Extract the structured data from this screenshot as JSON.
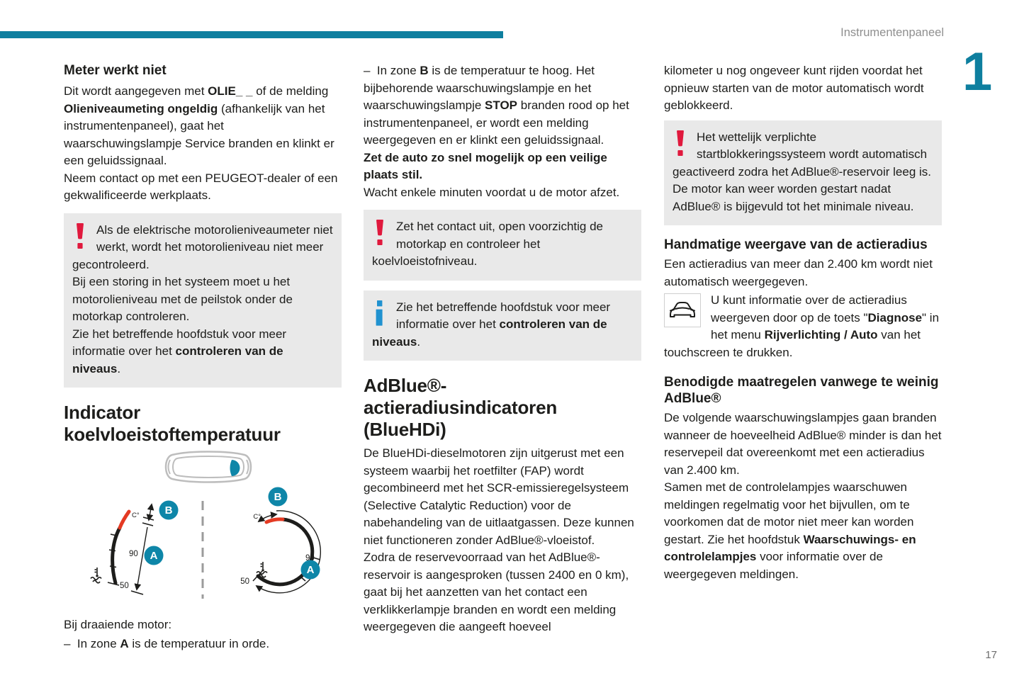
{
  "header": {
    "section_title": "Instrumentenpaneel",
    "chapter_number": "1",
    "page_number": "17"
  },
  "colors": {
    "accent_teal": "#0e7f9f",
    "badge_teal": "#0e86a8",
    "warning_red": "#e0193d",
    "gauge_red": "#e43a23",
    "info_blue": "#2092d0",
    "box_gray": "#e9e9e9",
    "text": "#1d1d1b"
  },
  "col1": {
    "h_meter": "Meter werkt niet",
    "p_meter": [
      {
        "t": "Dit wordt aangegeven met "
      },
      {
        "t": "OLIE_ _",
        "b": true
      },
      {
        "t": " of de melding "
      },
      {
        "t": "Olieniveaumeting ongeldig",
        "b": true
      },
      {
        "t": " (afhankelijk van het instrumentenpaneel), gaat het waarschuwingslampje Service branden en klinkt er een geluidssignaal."
      },
      {
        "br": true
      },
      {
        "t": "Neem contact op met een PEUGEOT-dealer of een gekwalificeerde werkplaats."
      }
    ],
    "warn_oil": [
      {
        "t": "Als de elektrische motorolieniveaumeter niet werkt, wordt het motorolieniveau niet meer gecontroleerd."
      },
      {
        "br": true
      },
      {
        "t": "Bij een storing in het systeem moet u het motorolieniveau met de peilstok onder de motorkap controleren."
      },
      {
        "br": true
      },
      {
        "t": "Zie het betreffende hoofdstuk voor meer informatie over het "
      },
      {
        "t": "controleren van de niveaus",
        "b": true
      },
      {
        "t": "."
      }
    ],
    "h_coolant": "Indicator koelvloeistoftemperatuur",
    "figure": {
      "zone_a": "A",
      "zone_b": "B",
      "temp_90": "90",
      "temp_50": "50",
      "celsius": "C°"
    },
    "p_engine": "Bij draaiende motor:",
    "p_zone_a": [
      {
        "t": "–  In zone "
      },
      {
        "t": "A",
        "b": true
      },
      {
        "t": " is de temperatuur in orde."
      }
    ]
  },
  "col2": {
    "p_zone_b": [
      {
        "t": "–  In zone "
      },
      {
        "t": "B",
        "b": true
      },
      {
        "t": " is de temperatuur te hoog. Het bijbehorende waarschuwingslampje en het waarschuwingslampje "
      },
      {
        "t": "STOP",
        "b": true
      },
      {
        "t": " branden rood op het instrumentenpaneel, er wordt een melding weergegeven en er klinkt een geluidssignaal."
      },
      {
        "br": true
      },
      {
        "t": "Zet de auto zo snel mogelijk op een veilige plaats stil.",
        "b": true
      },
      {
        "br": true
      },
      {
        "t": "Wacht enkele minuten voordat u de motor afzet."
      }
    ],
    "warn_contact": [
      {
        "t": "Zet het contact uit, open voorzichtig de motorkap en controleer het koelvloeistofniveau."
      }
    ],
    "info_levels": [
      {
        "t": "Zie het betreffende hoofdstuk voor meer informatie over het "
      },
      {
        "t": "controleren van de niveaus",
        "b": true
      },
      {
        "t": "."
      }
    ],
    "h_adblue": [
      {
        "t": "AdBlue®-"
      },
      {
        "br": true
      },
      {
        "t": "actieradiusindicatoren"
      },
      {
        "br": true
      },
      {
        "t": "(BlueHDi)"
      }
    ],
    "p_bluehdi": [
      {
        "t": "De BlueHDi-dieselmotoren zijn uitgerust met een systeem waarbij het roetfilter (FAP) wordt gecombineerd met het SCR-emissieregelsysteem (Selective Catalytic Reduction) voor de nabehandeling van de uitlaatgassen. Deze kunnen niet functioneren zonder AdBlue®-vloeistof."
      },
      {
        "br": true
      },
      {
        "t": "Zodra de reservevoorraad van het AdBlue®-reservoir is aangesproken (tussen 2400 en 0 km), gaat bij het aanzetten van het contact een verklikkerlampje branden en wordt een melding weergegeven die aangeeft hoeveel"
      }
    ]
  },
  "col3": {
    "p_kilometer": "kilometer u nog ongeveer kunt rijden voordat het opnieuw starten van de motor automatisch wordt geblokkeerd.",
    "warn_lock": [
      {
        "t": "Het wettelijk verplichte startblokkeringssysteem wordt automatisch geactiveerd zodra het AdBlue®-reservoir leeg is. De motor kan weer worden gestart nadat AdBlue® is bijgevuld tot het minimale niveau."
      }
    ],
    "h_manual": "Handmatige weergave van de actieradius",
    "p_radius": "Een actieradius van meer dan 2.400 km wordt niet automatisch weergegeven.",
    "p_diagnose": [
      {
        "t": "U kunt informatie over de actieradius weergeven door op de toets \""
      },
      {
        "t": "Diagnose",
        "b": true
      },
      {
        "t": "\" in het menu "
      },
      {
        "t": "Rijverlichting / Auto",
        "b": true
      },
      {
        "t": " van het touchscreen te drukken."
      }
    ],
    "h_measures": "Benodigde maatregelen vanwege te weinig AdBlue®",
    "p_measures": [
      {
        "t": "De volgende waarschuwingslampjes gaan branden wanneer de hoeveelheid AdBlue® minder is dan het reservepeil dat overeenkomt met een actieradius van 2.400 km."
      },
      {
        "br": true
      },
      {
        "t": "Samen met de controlelampjes waarschuwen meldingen regelmatig voor het bijvullen, om te voorkomen dat de motor niet meer kan worden gestart. Zie het hoofdstuk "
      },
      {
        "t": "Waarschuwings- en controlelampjes",
        "b": true
      },
      {
        "t": " voor informatie over de weergegeven meldingen."
      }
    ]
  }
}
